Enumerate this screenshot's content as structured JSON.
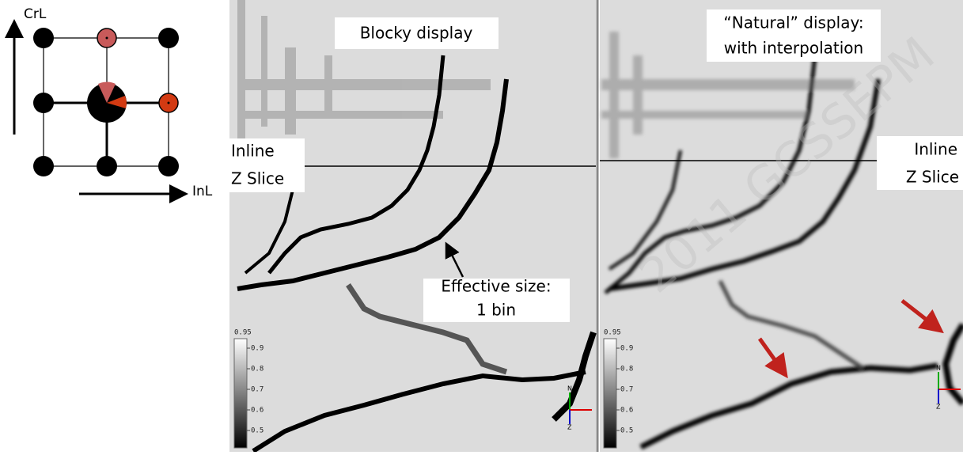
{
  "diagram": {
    "vertical_axis": "CrL",
    "horizontal_axis": "InL"
  },
  "left_panel": {
    "title": "Blocky display",
    "slice_label": [
      "Inline",
      "Z Slice"
    ],
    "annotation": [
      "Effective size:",
      "1 bin"
    ]
  },
  "right_panel": {
    "title": [
      "“Natural” display:",
      "with interpolation"
    ],
    "slice_label": [
      "Inline",
      "Z Slice"
    ]
  },
  "colorbar": {
    "top": "0.95",
    "ticks": [
      "0.9",
      "0.8",
      "0.7",
      "0.6",
      "0.5"
    ]
  },
  "orientation": [
    "N",
    "Z"
  ],
  "watermark": "2011 GCSSEPM"
}
